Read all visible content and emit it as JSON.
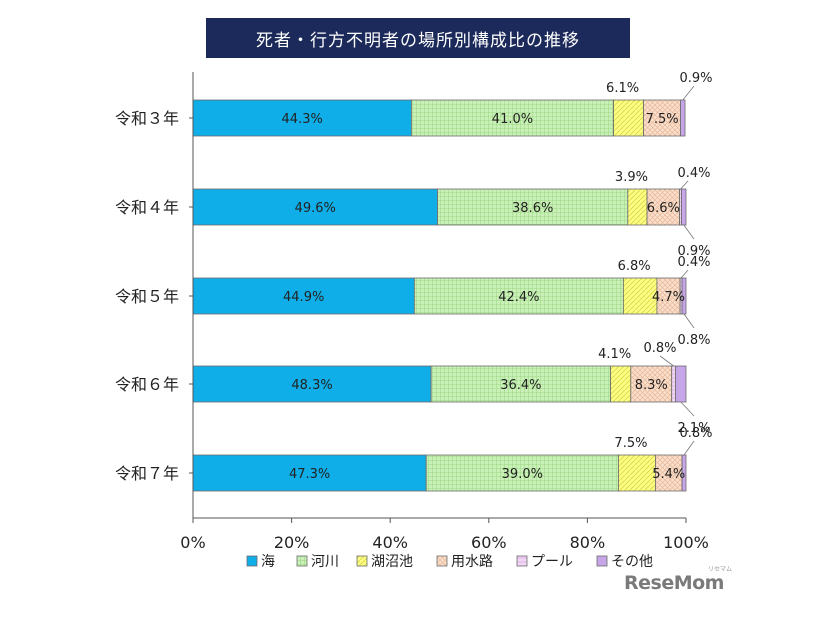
{
  "chart_data": {
    "type": "bar",
    "orientation": "horizontal-stacked-100",
    "title": "死者・行方不明者の場所別構成比の推移",
    "categories": [
      "令和３年",
      "令和４年",
      "令和５年",
      "令和６年",
      "令和７年"
    ],
    "series": [
      {
        "name": "海",
        "values": [
          44.3,
          49.6,
          44.9,
          48.3,
          47.3
        ],
        "labels": [
          "44.3%",
          "49.6%",
          "44.9%",
          "48.3%",
          "47.3%"
        ]
      },
      {
        "name": "河川",
        "values": [
          41.0,
          38.6,
          42.4,
          36.4,
          39.0
        ],
        "labels": [
          "41.0%",
          "38.6%",
          "42.4%",
          "36.4%",
          "39.0%"
        ]
      },
      {
        "name": "湖沼池",
        "values": [
          6.1,
          3.9,
          6.8,
          4.1,
          7.5
        ],
        "labels": [
          "6.1%",
          "3.9%",
          "6.8%",
          "4.1%",
          "7.5%"
        ]
      },
      {
        "name": "用水路",
        "values": [
          7.5,
          6.6,
          4.7,
          8.3,
          5.4
        ],
        "labels": [
          "7.5%",
          "6.6%",
          "4.7%",
          "8.3%",
          "5.4%"
        ]
      },
      {
        "name": "プール",
        "values": [
          0,
          0.4,
          0.4,
          0.8,
          0
        ],
        "labels": [
          "",
          "0.4%",
          "0.4%",
          "0.8%",
          ""
        ]
      },
      {
        "name": "その他",
        "values": [
          0.9,
          0.9,
          0.8,
          2.1,
          0.8
        ],
        "labels": [
          "0.9%",
          "0.9%",
          "0.8%",
          "2.1%",
          "0.8%"
        ]
      }
    ],
    "xlim": [
      0,
      100
    ],
    "xticks": [
      "0%",
      "20%",
      "40%",
      "60%",
      "80%",
      "100%"
    ],
    "legend_position": "bottom",
    "grid": false,
    "colors": {
      "海": "#10aee8",
      "河川": "#c9f0b6",
      "湖沼池": "#fdfd85",
      "用水路": "#fbe0cc",
      "プール": "#f2d6f5",
      "その他": "#c6a6e8"
    }
  },
  "watermark": {
    "text": "ReseMom",
    "sub": "リセマム"
  }
}
